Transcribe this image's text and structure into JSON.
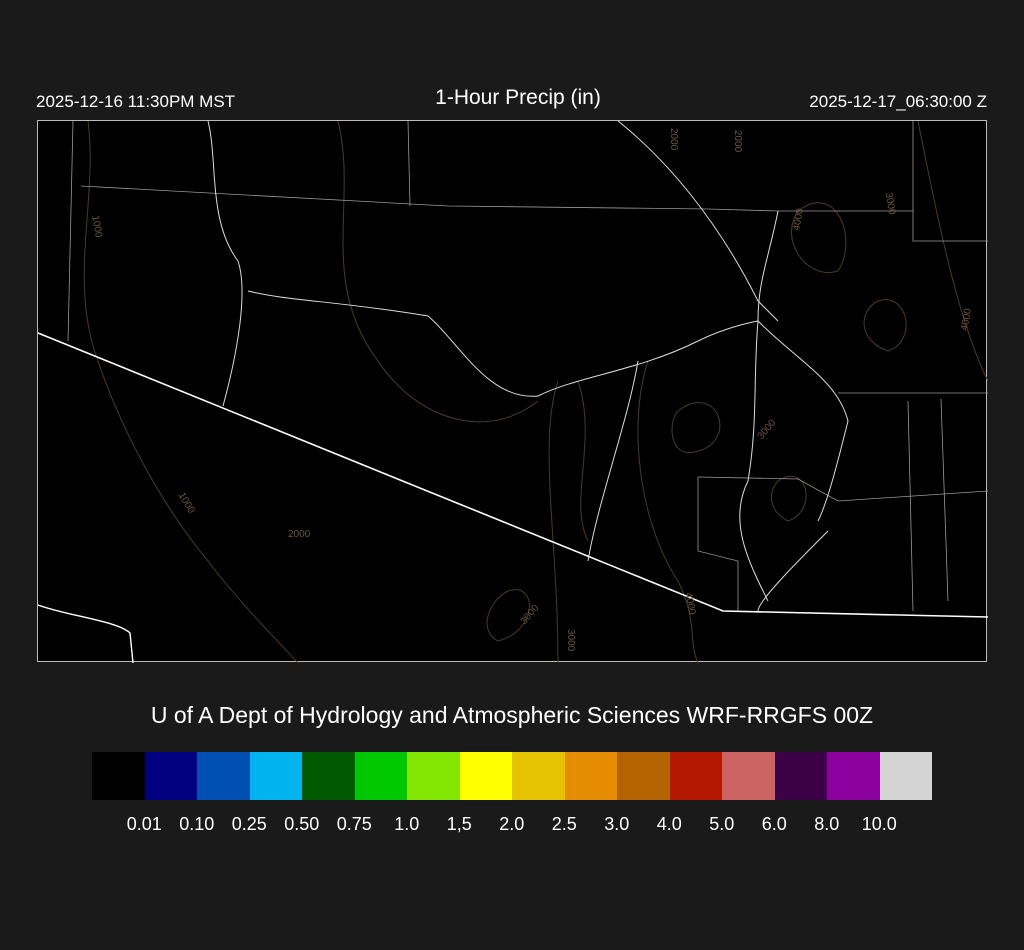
{
  "header": {
    "local_time": "2025-12-16 11:30PM MST",
    "title": "1-Hour Precip (in)",
    "utc_time": "2025-12-17_06:30:00 Z"
  },
  "map": {
    "contour_labels": [
      "1000",
      "1000",
      "2000",
      "2000",
      "3000",
      "3000",
      "3000",
      "4000",
      "4000",
      "3000",
      "4000",
      "2000"
    ],
    "contour_color": "#5a4633",
    "border_color": "#ffffff"
  },
  "credit": "U of A Dept of Hydrology and Atmospheric Sciences WRF-RRGFS 00Z",
  "legend": {
    "colors": [
      "#000000",
      "#000080",
      "#0050b4",
      "#00b4f0",
      "#005a00",
      "#00c800",
      "#82e600",
      "#ffff00",
      "#e6c300",
      "#e68c00",
      "#b46400",
      "#b41900",
      "#cd6464",
      "#3c0046",
      "#8c00a0",
      "#d4d4d4"
    ],
    "labels": [
      "0.01",
      "0.10",
      "0.25",
      "0.50",
      "0.75",
      "1.0",
      "1,5",
      "2.0",
      "2.5",
      "3.0",
      "4.0",
      "5.0",
      "6.0",
      "8.0",
      "10.0"
    ]
  }
}
